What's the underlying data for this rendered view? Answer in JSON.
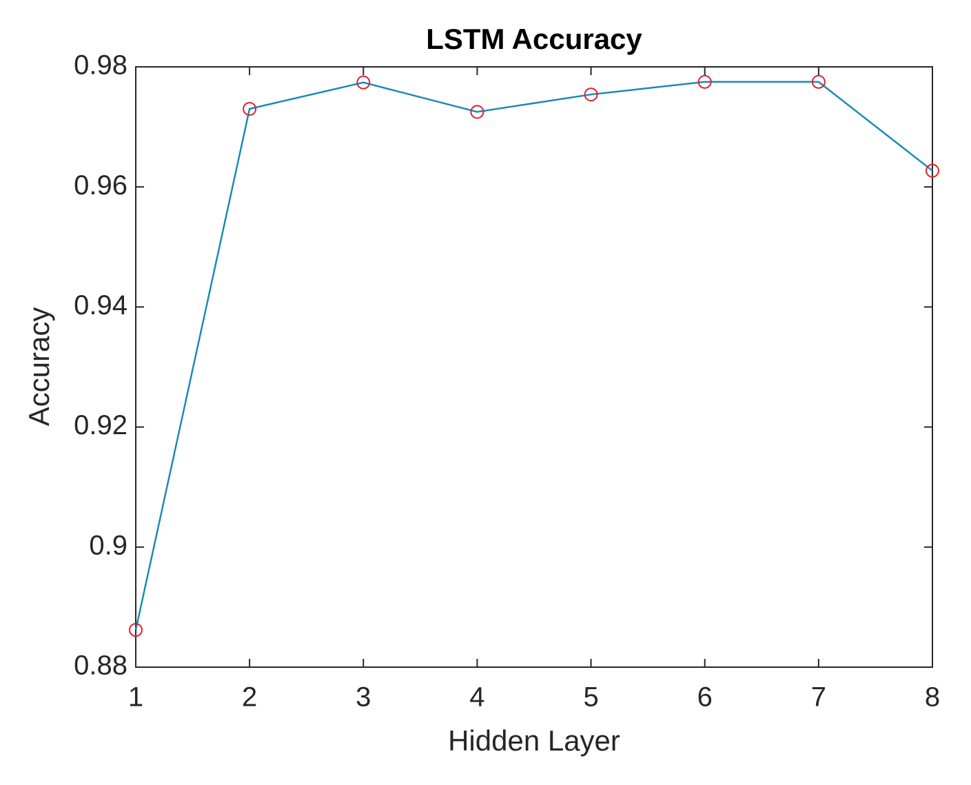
{
  "chart_data": {
    "type": "line",
    "title": "LSTM Accuracy",
    "xlabel": "Hidden Layer",
    "ylabel": "Accuracy",
    "x": [
      1,
      2,
      3,
      4,
      5,
      6,
      7,
      8
    ],
    "values": [
      0.8862,
      0.973,
      0.9774,
      0.9725,
      0.9754,
      0.9775,
      0.9775,
      0.9627
    ],
    "color": "#1a8ab8",
    "marker_color": "#e0202e",
    "xlim": [
      1,
      8
    ],
    "xticks": [
      1,
      2,
      3,
      4,
      5,
      6,
      7,
      8
    ],
    "ylim": [
      0.88,
      0.98
    ],
    "yticks": [
      0.88,
      0.9,
      0.92,
      0.94,
      0.96,
      0.98
    ],
    "grid": false
  }
}
